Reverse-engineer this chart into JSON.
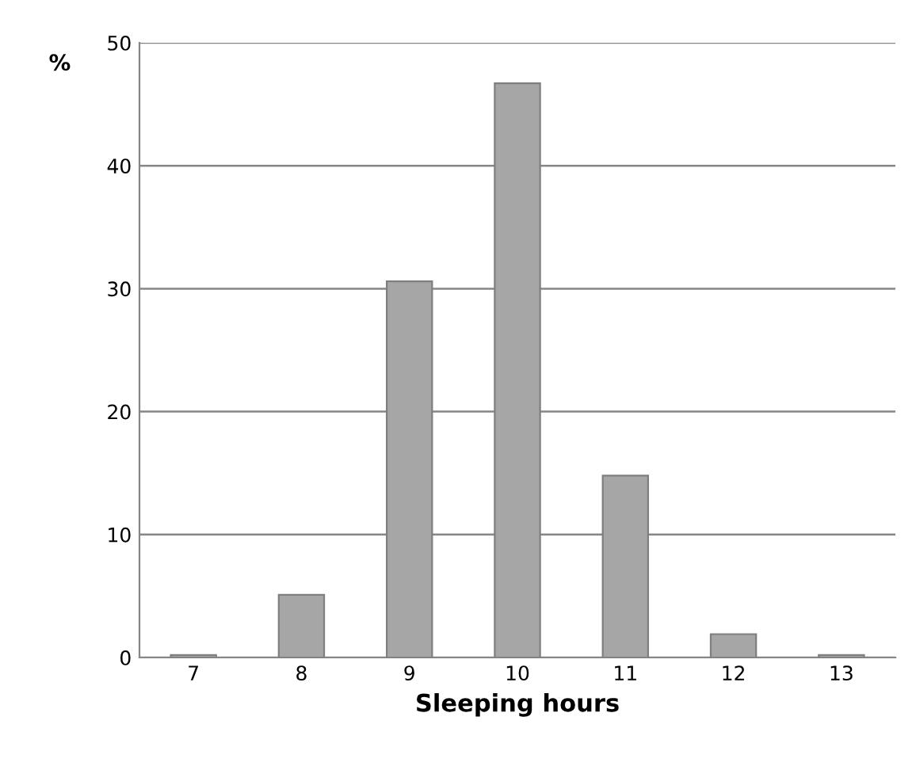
{
  "chart_data": {
    "type": "bar",
    "xlabel": "Sleeping hours",
    "ylabel": "%",
    "categories": [
      "7",
      "8",
      "9",
      "10",
      "11",
      "12",
      "13"
    ],
    "values": [
      0.2,
      5.1,
      30.6,
      46.7,
      14.8,
      1.9,
      0.2
    ],
    "color": "#a6a6a6",
    "ylim": [
      0,
      50
    ],
    "yticks": [
      0,
      10,
      20,
      30,
      40,
      50
    ],
    "grid": "y",
    "legend": false
  }
}
